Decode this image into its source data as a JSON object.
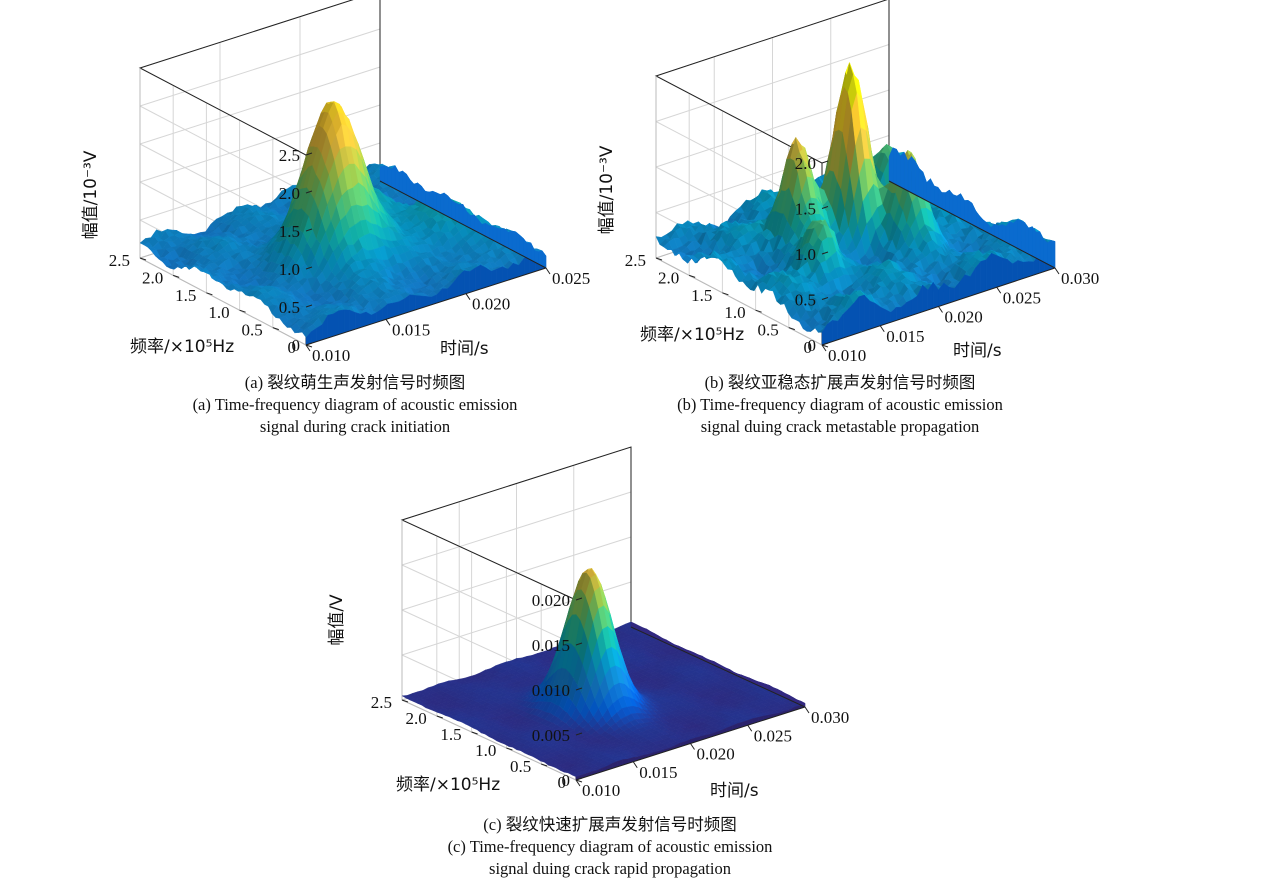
{
  "chart_data": [
    {
      "type": "surface3d",
      "zlabel": "幅值/10⁻³V",
      "ylabel": "频率/×10⁵Hz",
      "xlabel": "时间/s",
      "z_ticks": [
        "0",
        "0.5",
        "1.0",
        "1.5",
        "2.0",
        "2.5"
      ],
      "y_ticks": [
        "0",
        "0.5",
        "1.0",
        "1.5",
        "2.0",
        "2.5"
      ],
      "x_ticks": [
        "0.010",
        "0.015",
        "0.020",
        "0.025"
      ],
      "zlim": [
        0,
        2.5
      ],
      "ylim": [
        0,
        2.5
      ],
      "xlim": [
        0.01,
        0.025
      ],
      "peaks": [
        {
          "x": 0.0165,
          "y": 1.15,
          "z": 2.05
        },
        {
          "x": 0.0195,
          "y": 1.5,
          "z": 0.6
        },
        {
          "x": 0.0222,
          "y": 0.8,
          "z": 0.45
        }
      ],
      "caption_cn": "(a) 裂纹萌生声发射信号时频图",
      "caption_en_1": "(a) Time-frequency diagram of acoustic emission",
      "caption_en_2": "signal during crack initiation"
    },
    {
      "type": "surface3d",
      "zlabel": "幅值/10⁻³V",
      "ylabel": "频率/×10⁵Hz",
      "xlabel": "时间/s",
      "z_ticks": [
        "0",
        "0.5",
        "1.0",
        "1.5",
        "2.0"
      ],
      "y_ticks": [
        "0",
        "0.5",
        "1.0",
        "1.5",
        "2.0",
        "2.5"
      ],
      "x_ticks": [
        "0.010",
        "0.015",
        "0.020",
        "0.025",
        "0.030"
      ],
      "zlim": [
        0,
        2.0
      ],
      "ylim": [
        0,
        2.5
      ],
      "xlim": [
        0.01,
        0.03
      ],
      "peaks": [
        {
          "x": 0.0205,
          "y": 1.4,
          "z": 1.75
        },
        {
          "x": 0.017,
          "y": 1.6,
          "z": 1.2
        },
        {
          "x": 0.023,
          "y": 1.0,
          "z": 0.9
        },
        {
          "x": 0.015,
          "y": 0.9,
          "z": 0.6
        },
        {
          "x": 0.026,
          "y": 1.8,
          "z": 0.5
        }
      ],
      "caption_cn": "(b) 裂纹亚稳态扩展声发射信号时频图",
      "caption_en_1": "(b) Time-frequency diagram of acoustic emission",
      "caption_en_2": "signal duing  crack metastable propagation"
    },
    {
      "type": "surface3d",
      "zlabel": "幅值/V",
      "ylabel": "频率/×10⁵Hz",
      "xlabel": "时间/s",
      "z_ticks": [
        "0",
        "0.005",
        "0.010",
        "0.015",
        "0.020"
      ],
      "y_ticks": [
        "0",
        "0.5",
        "1.0",
        "1.5",
        "2.0",
        "2.5"
      ],
      "x_ticks": [
        "0.010",
        "0.015",
        "0.020",
        "0.025",
        "0.030"
      ],
      "zlim": [
        0,
        0.02
      ],
      "ylim": [
        0,
        2.5
      ],
      "xlim": [
        0.01,
        0.03
      ],
      "peaks": [
        {
          "x": 0.0185,
          "y": 1.2,
          "z": 0.0155
        }
      ],
      "caption_cn": "(c) 裂纹快速扩展声发射信号时频图",
      "caption_en_1": "(c) Time-frequency diagram of  acoustic emission",
      "caption_en_2": "signal duing crack rapid propagation"
    }
  ]
}
